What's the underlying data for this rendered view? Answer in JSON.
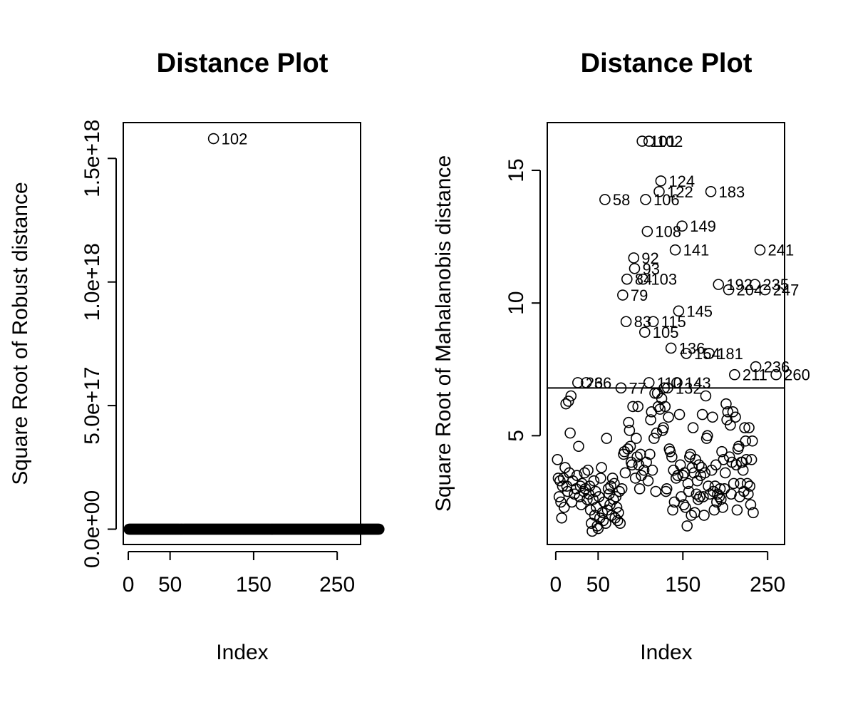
{
  "chart_data": [
    {
      "type": "scatter",
      "title": "Distance Plot",
      "xlabel": "Index",
      "ylabel": "Square Root of Robust distance",
      "xlim": [
        -6,
        278
      ],
      "ylim": [
        -6.2e+16,
        1.645e+18
      ],
      "x_ticks": [
        0,
        50,
        150,
        250
      ],
      "x_tick_labels": [
        "0",
        "50",
        "150",
        "250"
      ],
      "y_ticks": [
        0,
        5e+17,
        1e+18,
        1.5e+18
      ],
      "y_tick_labels": [
        "0.0e+00",
        "5.0e+17",
        "1.0e+18",
        "1.5e+18"
      ],
      "grid": false,
      "series": [
        {
          "points": [
            {
              "x": 102,
              "y": 1.58e+18,
              "label": "102"
            }
          ],
          "cluster_y": 0,
          "cluster_x_from": 1,
          "cluster_x_to": 300
        }
      ]
    },
    {
      "type": "scatter",
      "title": "Distance Plot",
      "xlabel": "Index",
      "ylabel": "Square Root of Mahalanobis distance",
      "xlim": [
        -10,
        270
      ],
      "ylim": [
        0.9,
        16.8
      ],
      "x_ticks": [
        0,
        50,
        150,
        250
      ],
      "x_tick_labels": [
        "0",
        "50",
        "150",
        "250"
      ],
      "y_ticks": [
        5,
        10,
        15
      ],
      "y_tick_labels": [
        "5",
        "10",
        "15"
      ],
      "grid": false,
      "cutoff": 6.8,
      "labeled_points": [
        {
          "x": 102,
          "y": 16.1,
          "label": "101"
        },
        {
          "x": 110,
          "y": 16.1,
          "label": "102"
        },
        {
          "x": 124,
          "y": 14.6,
          "label": "124"
        },
        {
          "x": 122,
          "y": 14.2,
          "label": "122"
        },
        {
          "x": 183,
          "y": 14.2,
          "label": "183"
        },
        {
          "x": 58,
          "y": 13.9,
          "label": "58"
        },
        {
          "x": 106,
          "y": 13.9,
          "label": "106"
        },
        {
          "x": 149,
          "y": 12.9,
          "label": "149"
        },
        {
          "x": 108,
          "y": 12.7,
          "label": "108"
        },
        {
          "x": 141,
          "y": 12.0,
          "label": "141"
        },
        {
          "x": 241,
          "y": 12.0,
          "label": "241"
        },
        {
          "x": 92,
          "y": 11.7,
          "label": "92"
        },
        {
          "x": 93,
          "y": 11.3,
          "label": "93"
        },
        {
          "x": 84,
          "y": 10.9,
          "label": "84"
        },
        {
          "x": 103,
          "y": 10.9,
          "label": "103"
        },
        {
          "x": 192,
          "y": 10.7,
          "label": "192"
        },
        {
          "x": 235,
          "y": 10.7,
          "label": "235"
        },
        {
          "x": 204,
          "y": 10.5,
          "label": "204"
        },
        {
          "x": 247,
          "y": 10.5,
          "label": "247"
        },
        {
          "x": 79,
          "y": 10.3,
          "label": "79"
        },
        {
          "x": 145,
          "y": 9.7,
          "label": "145"
        },
        {
          "x": 83,
          "y": 9.3,
          "label": "83"
        },
        {
          "x": 115,
          "y": 9.3,
          "label": "115"
        },
        {
          "x": 105,
          "y": 8.9,
          "label": "105"
        },
        {
          "x": 136,
          "y": 8.3,
          "label": "136"
        },
        {
          "x": 154,
          "y": 8.1,
          "label": "154"
        },
        {
          "x": 181,
          "y": 8.1,
          "label": "181"
        },
        {
          "x": 236,
          "y": 7.6,
          "label": "236"
        },
        {
          "x": 211,
          "y": 7.3,
          "label": "211"
        },
        {
          "x": 260,
          "y": 7.3,
          "label": "260"
        },
        {
          "x": 36,
          "y": 7.0,
          "label": "36"
        },
        {
          "x": 26,
          "y": 7.0,
          "label": "26"
        },
        {
          "x": 110,
          "y": 7.0,
          "label": "110"
        },
        {
          "x": 143,
          "y": 7.0,
          "label": "143"
        },
        {
          "x": 77,
          "y": 6.8,
          "label": "77"
        },
        {
          "x": 132,
          "y": 6.8,
          "label": "132"
        }
      ],
      "points": [
        {
          "x": 2,
          "y": 4.1
        },
        {
          "x": 3,
          "y": 3.4
        },
        {
          "x": 4,
          "y": 2.7
        },
        {
          "x": 5,
          "y": 3.3
        },
        {
          "x": 6,
          "y": 2.5
        },
        {
          "x": 7,
          "y": 1.9
        },
        {
          "x": 8,
          "y": 3.1
        },
        {
          "x": 9,
          "y": 3.4
        },
        {
          "x": 10,
          "y": 2.3
        },
        {
          "x": 11,
          "y": 3.8
        },
        {
          "x": 12,
          "y": 6.2
        },
        {
          "x": 13,
          "y": 3.1
        },
        {
          "x": 14,
          "y": 2.9
        },
        {
          "x": 15,
          "y": 6.3
        },
        {
          "x": 16,
          "y": 3.6
        },
        {
          "x": 17,
          "y": 5.1
        },
        {
          "x": 18,
          "y": 6.5
        },
        {
          "x": 19,
          "y": 2.5
        },
        {
          "x": 20,
          "y": 3.3
        },
        {
          "x": 22,
          "y": 2.8
        },
        {
          "x": 24,
          "y": 3.0
        },
        {
          "x": 25,
          "y": 3.5
        },
        {
          "x": 27,
          "y": 4.6
        },
        {
          "x": 28,
          "y": 2.7
        },
        {
          "x": 29,
          "y": 3.1
        },
        {
          "x": 30,
          "y": 2.4
        },
        {
          "x": 31,
          "y": 3.2
        },
        {
          "x": 33,
          "y": 2.9
        },
        {
          "x": 34,
          "y": 3.6
        },
        {
          "x": 35,
          "y": 3.0
        },
        {
          "x": 37,
          "y": 2.6
        },
        {
          "x": 38,
          "y": 3.7
        },
        {
          "x": 39,
          "y": 2.8
        },
        {
          "x": 40,
          "y": 3.1
        },
        {
          "x": 41,
          "y": 2.2
        },
        {
          "x": 42,
          "y": 1.7
        },
        {
          "x": 43,
          "y": 1.4
        },
        {
          "x": 44,
          "y": 2.6
        },
        {
          "x": 45,
          "y": 3.3
        },
        {
          "x": 46,
          "y": 2.0
        },
        {
          "x": 47,
          "y": 2.9
        },
        {
          "x": 48,
          "y": 2.3
        },
        {
          "x": 49,
          "y": 1.6
        },
        {
          "x": 50,
          "y": 1.5
        },
        {
          "x": 51,
          "y": 2.7
        },
        {
          "x": 52,
          "y": 1.9
        },
        {
          "x": 53,
          "y": 3.4
        },
        {
          "x": 54,
          "y": 3.8
        },
        {
          "x": 55,
          "y": 2.1
        },
        {
          "x": 56,
          "y": 1.8
        },
        {
          "x": 57,
          "y": 2.5
        },
        {
          "x": 59,
          "y": 1.7
        },
        {
          "x": 60,
          "y": 4.9
        },
        {
          "x": 61,
          "y": 2.2
        },
        {
          "x": 62,
          "y": 3.0
        },
        {
          "x": 63,
          "y": 2.8
        },
        {
          "x": 64,
          "y": 2.4
        },
        {
          "x": 65,
          "y": 3.1
        },
        {
          "x": 66,
          "y": 2.0
        },
        {
          "x": 67,
          "y": 3.4
        },
        {
          "x": 68,
          "y": 2.6
        },
        {
          "x": 69,
          "y": 3.2
        },
        {
          "x": 70,
          "y": 1.9
        },
        {
          "x": 71,
          "y": 2.7
        },
        {
          "x": 72,
          "y": 2.3
        },
        {
          "x": 73,
          "y": 1.8
        },
        {
          "x": 74,
          "y": 2.1
        },
        {
          "x": 75,
          "y": 2.9
        },
        {
          "x": 76,
          "y": 1.7
        },
        {
          "x": 78,
          "y": 3.0
        },
        {
          "x": 80,
          "y": 4.3
        },
        {
          "x": 81,
          "y": 4.4
        },
        {
          "x": 82,
          "y": 3.6
        },
        {
          "x": 85,
          "y": 4.5
        },
        {
          "x": 86,
          "y": 5.5
        },
        {
          "x": 87,
          "y": 5.2
        },
        {
          "x": 88,
          "y": 4.6
        },
        {
          "x": 89,
          "y": 4.0
        },
        {
          "x": 90,
          "y": 3.9
        },
        {
          "x": 91,
          "y": 6.1
        },
        {
          "x": 94,
          "y": 3.4
        },
        {
          "x": 95,
          "y": 4.9
        },
        {
          "x": 96,
          "y": 4.2
        },
        {
          "x": 97,
          "y": 6.1
        },
        {
          "x": 98,
          "y": 3.9
        },
        {
          "x": 99,
          "y": 3.0
        },
        {
          "x": 100,
          "y": 4.3
        },
        {
          "x": 101,
          "y": 3.5
        },
        {
          "x": 104,
          "y": 3.7
        },
        {
          "x": 107,
          "y": 4.0
        },
        {
          "x": 109,
          "y": 3.3
        },
        {
          "x": 111,
          "y": 4.3
        },
        {
          "x": 112,
          "y": 5.6
        },
        {
          "x": 113,
          "y": 5.9
        },
        {
          "x": 114,
          "y": 3.7
        },
        {
          "x": 116,
          "y": 4.9
        },
        {
          "x": 117,
          "y": 6.6
        },
        {
          "x": 118,
          "y": 2.9
        },
        {
          "x": 119,
          "y": 5.1
        },
        {
          "x": 120,
          "y": 6.6
        },
        {
          "x": 121,
          "y": 6.1
        },
        {
          "x": 123,
          "y": 6.0
        },
        {
          "x": 125,
          "y": 6.4
        },
        {
          "x": 126,
          "y": 5.2
        },
        {
          "x": 127,
          "y": 5.3
        },
        {
          "x": 128,
          "y": 6.8
        },
        {
          "x": 129,
          "y": 6.1
        },
        {
          "x": 130,
          "y": 2.9
        },
        {
          "x": 131,
          "y": 3.0
        },
        {
          "x": 133,
          "y": 5.7
        },
        {
          "x": 134,
          "y": 4.5
        },
        {
          "x": 135,
          "y": 4.4
        },
        {
          "x": 137,
          "y": 4.2
        },
        {
          "x": 138,
          "y": 2.2
        },
        {
          "x": 139,
          "y": 3.7
        },
        {
          "x": 140,
          "y": 2.5
        },
        {
          "x": 142,
          "y": 3.4
        },
        {
          "x": 144,
          "y": 3.5
        },
        {
          "x": 146,
          "y": 5.8
        },
        {
          "x": 147,
          "y": 3.9
        },
        {
          "x": 148,
          "y": 2.7
        },
        {
          "x": 150,
          "y": 3.5
        },
        {
          "x": 151,
          "y": 2.4
        },
        {
          "x": 152,
          "y": 3.6
        },
        {
          "x": 153,
          "y": 2.3
        },
        {
          "x": 155,
          "y": 1.6
        },
        {
          "x": 156,
          "y": 3.2
        },
        {
          "x": 157,
          "y": 2.9
        },
        {
          "x": 158,
          "y": 4.2
        },
        {
          "x": 159,
          "y": 4.3
        },
        {
          "x": 160,
          "y": 2.0
        },
        {
          "x": 161,
          "y": 3.8
        },
        {
          "x": 162,
          "y": 5.3
        },
        {
          "x": 163,
          "y": 3.6
        },
        {
          "x": 164,
          "y": 2.1
        },
        {
          "x": 165,
          "y": 4.1
        },
        {
          "x": 166,
          "y": 2.8
        },
        {
          "x": 167,
          "y": 3.3
        },
        {
          "x": 168,
          "y": 2.6
        },
        {
          "x": 169,
          "y": 3.9
        },
        {
          "x": 170,
          "y": 2.7
        },
        {
          "x": 171,
          "y": 3.5
        },
        {
          "x": 172,
          "y": 3.8
        },
        {
          "x": 173,
          "y": 5.8
        },
        {
          "x": 174,
          "y": 2.7
        },
        {
          "x": 175,
          "y": 2.0
        },
        {
          "x": 176,
          "y": 3.6
        },
        {
          "x": 177,
          "y": 6.5
        },
        {
          "x": 178,
          "y": 4.9
        },
        {
          "x": 179,
          "y": 5.0
        },
        {
          "x": 180,
          "y": 3.1
        },
        {
          "x": 182,
          "y": 2.8
        },
        {
          "x": 184,
          "y": 3.7
        },
        {
          "x": 185,
          "y": 5.7
        },
        {
          "x": 186,
          "y": 2.9
        },
        {
          "x": 187,
          "y": 2.2
        },
        {
          "x": 188,
          "y": 3.1
        },
        {
          "x": 189,
          "y": 3.9
        },
        {
          "x": 190,
          "y": 2.5
        },
        {
          "x": 191,
          "y": 2.8
        },
        {
          "x": 193,
          "y": 2.7
        },
        {
          "x": 194,
          "y": 3.0
        },
        {
          "x": 195,
          "y": 2.6
        },
        {
          "x": 196,
          "y": 4.4
        },
        {
          "x": 197,
          "y": 2.3
        },
        {
          "x": 198,
          "y": 4.1
        },
        {
          "x": 199,
          "y": 3.0
        },
        {
          "x": 200,
          "y": 3.6
        },
        {
          "x": 201,
          "y": 6.2
        },
        {
          "x": 202,
          "y": 5.6
        },
        {
          "x": 203,
          "y": 5.9
        },
        {
          "x": 205,
          "y": 4.2
        },
        {
          "x": 206,
          "y": 5.4
        },
        {
          "x": 207,
          "y": 2.8
        },
        {
          "x": 208,
          "y": 4.0
        },
        {
          "x": 209,
          "y": 5.9
        },
        {
          "x": 210,
          "y": 3.2
        },
        {
          "x": 212,
          "y": 5.7
        },
        {
          "x": 213,
          "y": 3.9
        },
        {
          "x": 214,
          "y": 2.2
        },
        {
          "x": 215,
          "y": 4.5
        },
        {
          "x": 216,
          "y": 4.6
        },
        {
          "x": 217,
          "y": 2.7
        },
        {
          "x": 218,
          "y": 3.2
        },
        {
          "x": 219,
          "y": 4.0
        },
        {
          "x": 220,
          "y": 4.0
        },
        {
          "x": 221,
          "y": 3.7
        },
        {
          "x": 222,
          "y": 2.9
        },
        {
          "x": 223,
          "y": 5.3
        },
        {
          "x": 224,
          "y": 4.8
        },
        {
          "x": 225,
          "y": 4.1
        },
        {
          "x": 226,
          "y": 3.2
        },
        {
          "x": 227,
          "y": 2.8
        },
        {
          "x": 228,
          "y": 5.3
        },
        {
          "x": 229,
          "y": 3.1
        },
        {
          "x": 230,
          "y": 2.4
        },
        {
          "x": 231,
          "y": 4.1
        },
        {
          "x": 232,
          "y": 4.8
        },
        {
          "x": 233,
          "y": 2.1
        }
      ]
    }
  ]
}
